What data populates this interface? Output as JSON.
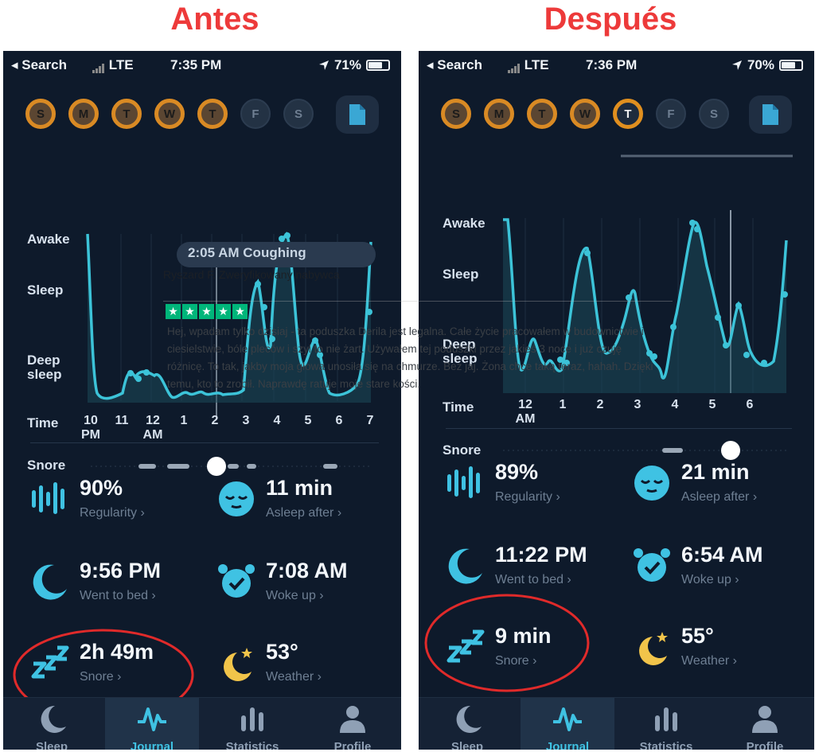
{
  "headings": {
    "before": "Antes",
    "after": "Después"
  },
  "left": {
    "status": {
      "back": "◂ Search",
      "carrier": "LTE",
      "time": "7:35 PM",
      "battery": "71%",
      "battery_level": 0.71
    },
    "days": [
      {
        "letter": "S",
        "state": "ring"
      },
      {
        "letter": "M",
        "state": "ring"
      },
      {
        "letter": "T",
        "state": "ring"
      },
      {
        "letter": "W",
        "state": "ring"
      },
      {
        "letter": "T",
        "state": "ring"
      },
      {
        "letter": "F",
        "state": "empty"
      },
      {
        "letter": "S",
        "state": "empty"
      }
    ],
    "banner": "2:05 AM Coughing",
    "ylabels": {
      "awake": "Awake",
      "sleep": "Sleep",
      "deep1": "Deep",
      "deep2": "sleep"
    },
    "time_label": "Time",
    "snore_label": "Snore",
    "ticks": [
      {
        "l1": "10",
        "l2": "PM"
      },
      {
        "l1": "11",
        "l2": ""
      },
      {
        "l1": "12",
        "l2": "AM"
      },
      {
        "l1": "1",
        "l2": ""
      },
      {
        "l1": "2",
        "l2": ""
      },
      {
        "l1": "3",
        "l2": ""
      },
      {
        "l1": "4",
        "l2": ""
      },
      {
        "l1": "5",
        "l2": ""
      },
      {
        "l1": "6",
        "l2": ""
      },
      {
        "l1": "7",
        "l2": ""
      }
    ],
    "metrics": {
      "regularity": {
        "value": "90%",
        "label": "Regularity ›"
      },
      "asleep": {
        "value": "11 min",
        "label": "Asleep after ›"
      },
      "bed": {
        "value": "9:56 PM",
        "label": "Went to bed ›"
      },
      "woke": {
        "value": "7:08 AM",
        "label": "Woke up ›"
      },
      "snore": {
        "value": "2h 49m",
        "label": "Snore ›"
      },
      "weather": {
        "value": "53°",
        "label": "Weather ›"
      }
    }
  },
  "right": {
    "status": {
      "back": "◂ Search",
      "carrier": "LTE",
      "time": "7:36 PM",
      "battery": "70%",
      "battery_level": 0.7
    },
    "days": [
      {
        "letter": "S",
        "state": "ring"
      },
      {
        "letter": "M",
        "state": "ring"
      },
      {
        "letter": "T",
        "state": "ring"
      },
      {
        "letter": "W",
        "state": "ring"
      },
      {
        "letter": "T",
        "state": "cur"
      },
      {
        "letter": "F",
        "state": "empty"
      },
      {
        "letter": "S",
        "state": "empty"
      }
    ],
    "ylabels": {
      "awake": "Awake",
      "sleep": "Sleep",
      "deep1": "Deep",
      "deep2": "sleep"
    },
    "time_label": "Time",
    "snore_label": "Snore",
    "ticks": [
      {
        "l1": "12",
        "l2": "AM"
      },
      {
        "l1": "1",
        "l2": ""
      },
      {
        "l1": "2",
        "l2": ""
      },
      {
        "l1": "3",
        "l2": ""
      },
      {
        "l1": "4",
        "l2": ""
      },
      {
        "l1": "5",
        "l2": ""
      },
      {
        "l1": "6",
        "l2": ""
      }
    ],
    "metrics": {
      "regularity": {
        "value": "89%",
        "label": "Regularity ›"
      },
      "asleep": {
        "value": "21 min",
        "label": "Asleep after ›"
      },
      "bed": {
        "value": "11:22 PM",
        "label": "Went to bed ›"
      },
      "woke": {
        "value": "6:54 AM",
        "label": "Woke up ›"
      },
      "snore": {
        "value": "9 min",
        "label": "Snore ›"
      },
      "weather": {
        "value": "55°",
        "label": "Weather ›"
      }
    }
  },
  "tabs": [
    "Sleep",
    "Journal",
    "Statistics",
    "Profile"
  ],
  "review": {
    "reviewer": "Ryszard F. Zweryfikowany nabywca",
    "stars": 5,
    "text": "Hej, wpadam tylko dzisiaj - ta poduszka Derila jest legalna. Całe życie pracowałem w budownictwie i ciesielstwie, bóle pleców i szyi to nie żart. Używałem tej poduszki przez jakieś 3 noce i już czuję różnicę. To tak, jakby moja głowa unosiła się na chmurze. Bez jaj. Żona chce taką teraz, hahah. Dzięki temu, kto to zrobił. Naprawdę ratuje moje stare kości."
  },
  "colors": {
    "accent": "#3fc2e3",
    "ring": "#d98a24",
    "bg": "#0e1a2b",
    "annotation": "#e02a2a"
  }
}
